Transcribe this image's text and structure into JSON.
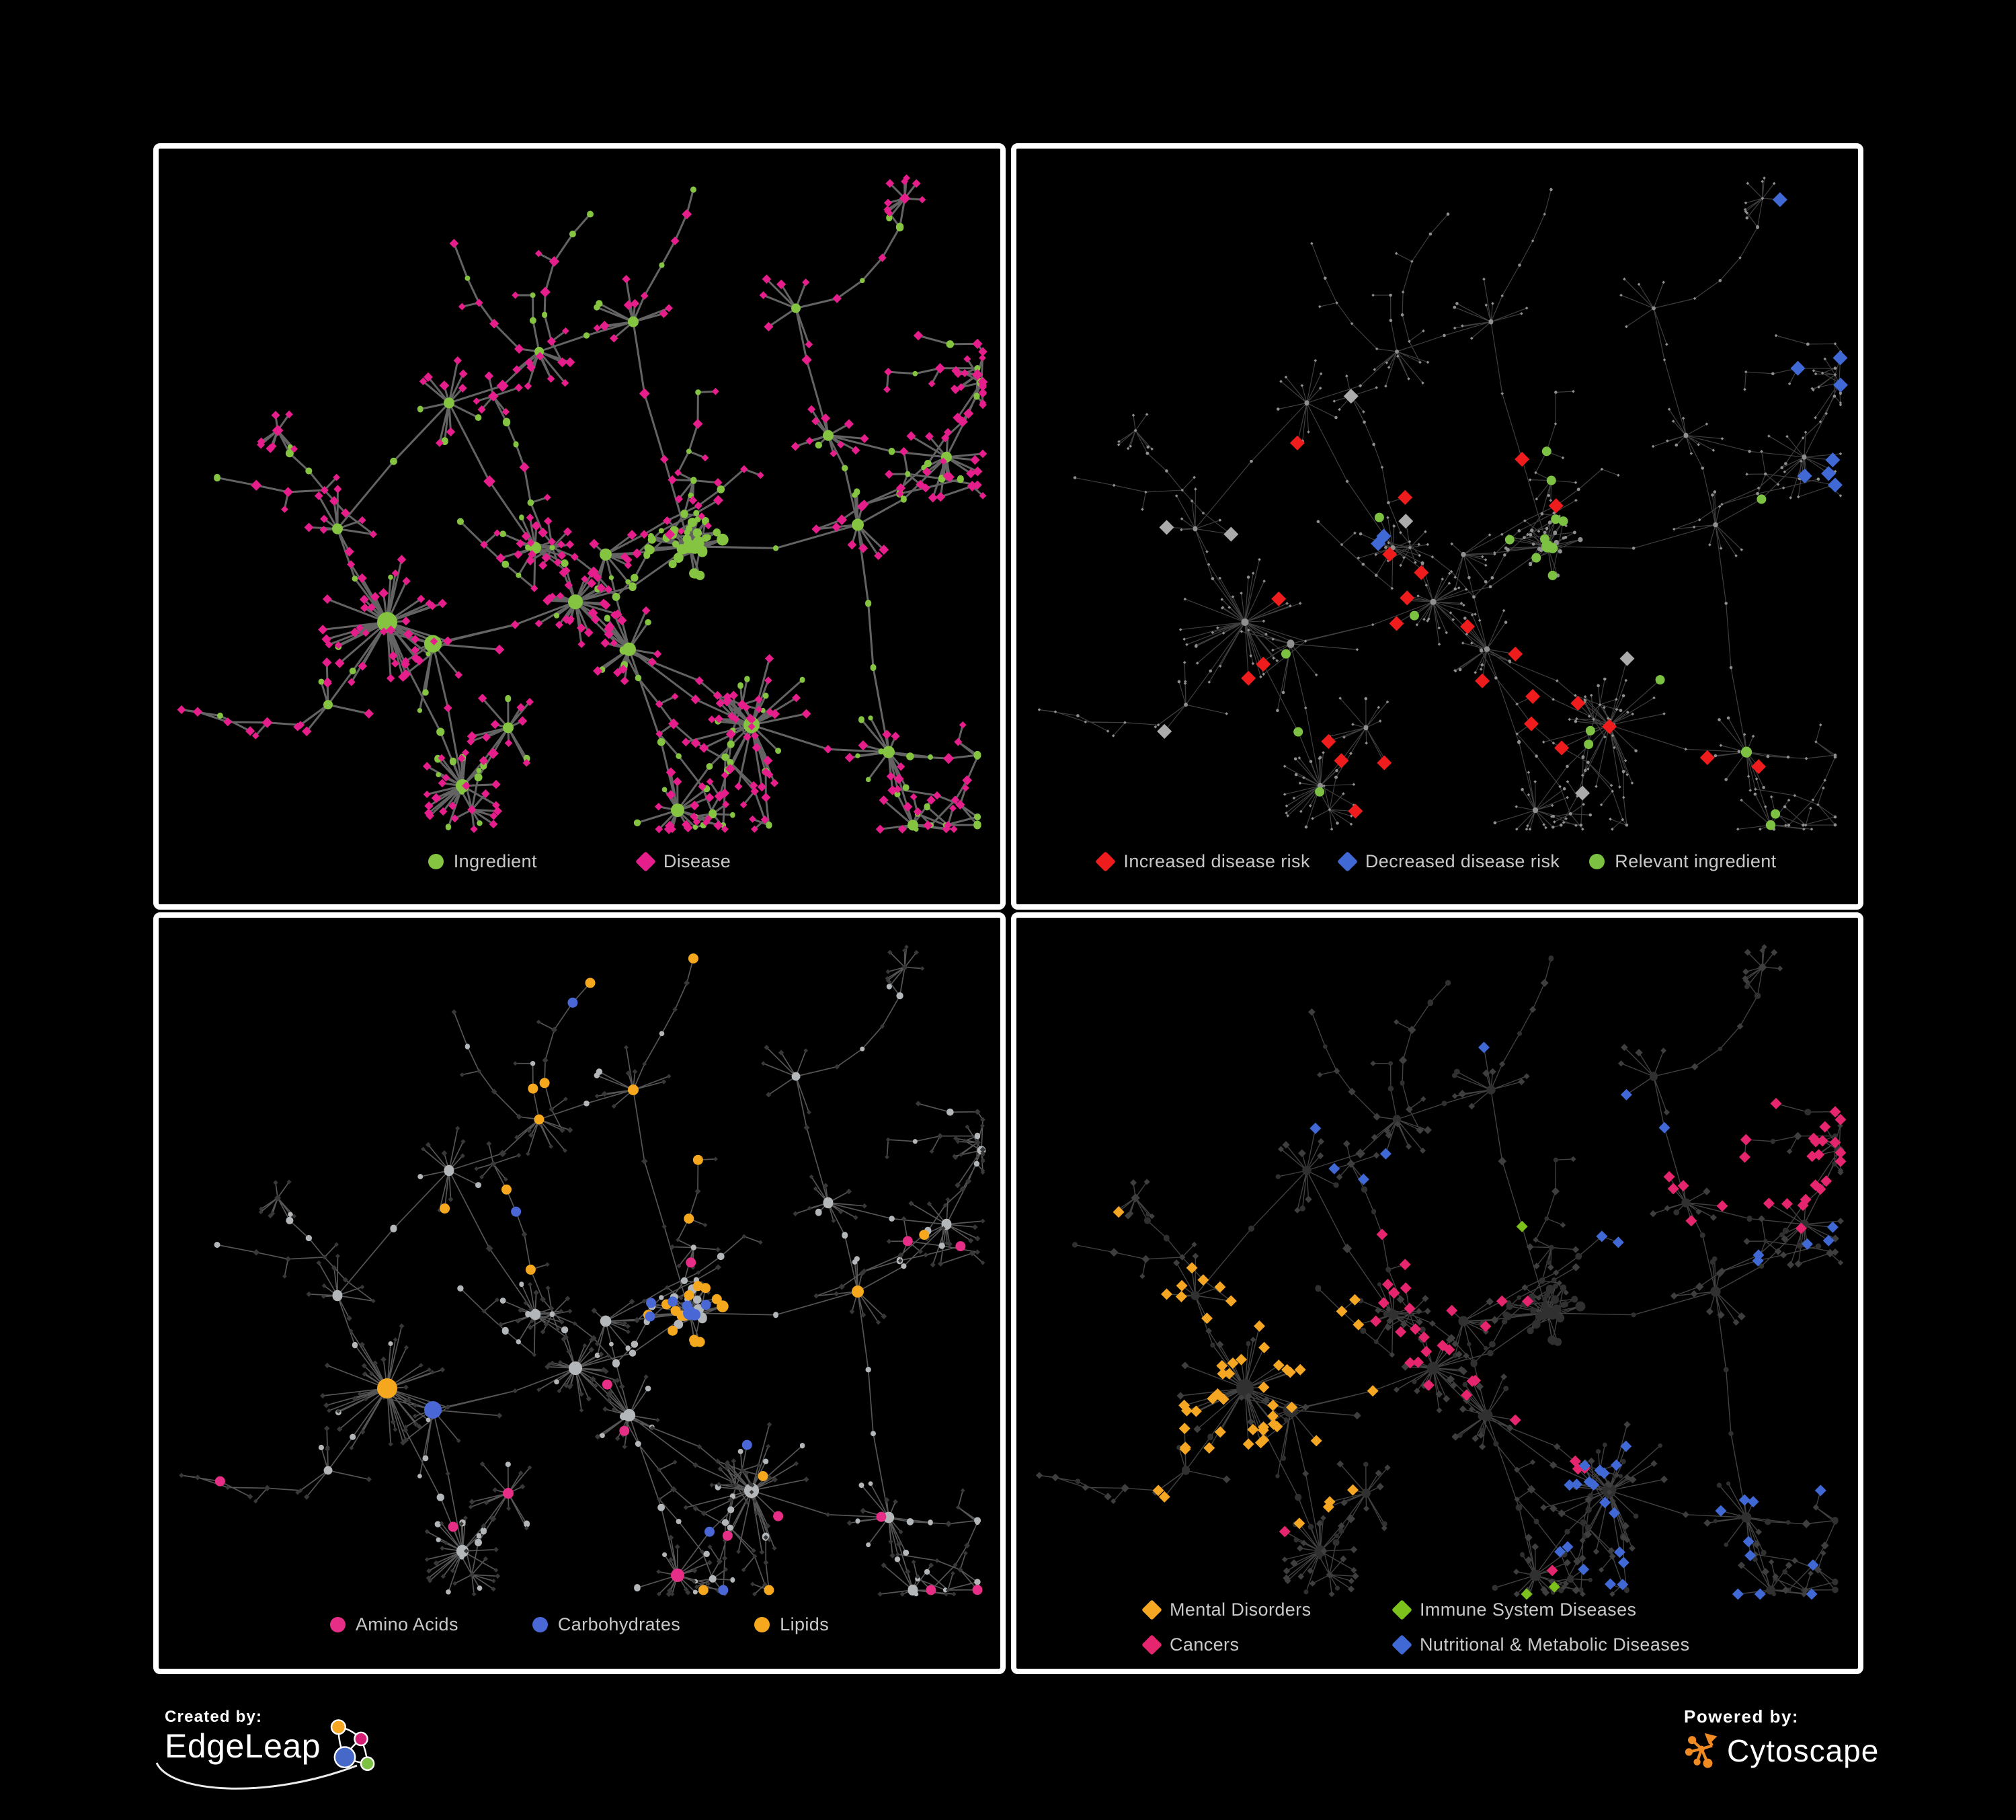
{
  "background": "#000000",
  "panel_border_color": "#FFFFFF",
  "panels": [
    {
      "name": "ingredient-disease-network",
      "legend": [
        {
          "label": "Ingredient",
          "shape": "circle",
          "color": "#84C441"
        },
        {
          "label": "Disease",
          "shape": "diamond",
          "color": "#E61E8C"
        }
      ]
    },
    {
      "name": "disease-risk-network",
      "legend": [
        {
          "label": "Increased disease risk",
          "shape": "diamond",
          "color": "#EE1C1C"
        },
        {
          "label": "Decreased disease risk",
          "shape": "diamond",
          "color": "#4169D6"
        },
        {
          "label": "Relevant ingredient",
          "shape": "circle",
          "color": "#7CC142"
        }
      ]
    },
    {
      "name": "nutrient-class-network",
      "legend": [
        {
          "label": "Amino Acids",
          "shape": "circle",
          "color": "#E62E87"
        },
        {
          "label": "Carbohydrates",
          "shape": "circle",
          "color": "#4A67D6"
        },
        {
          "label": "Lipids",
          "shape": "circle",
          "color": "#F5A81E"
        }
      ]
    },
    {
      "name": "disease-class-network",
      "legend": [
        {
          "label": "Mental Disorders",
          "shape": "diamond",
          "color": "#F5A623"
        },
        {
          "label": "Immune System Diseases",
          "shape": "diamond",
          "color": "#7CC11C"
        },
        {
          "label": "Cancers",
          "shape": "diamond",
          "color": "#E6256F"
        },
        {
          "label": "Nutritional & Metabolic Diseases",
          "shape": "diamond",
          "color": "#4169D6"
        }
      ]
    }
  ],
  "network_styles": [
    {
      "edge": "#6E6E6E",
      "edge_width": 3.0,
      "ingredient": "#84C441",
      "disease": "#E61E8C"
    },
    {
      "edge": "#454545",
      "edge_width": 1.2,
      "base": "#8F8F8F",
      "increased": "#EE1C1C",
      "decreased": "#4169D6",
      "neutral": "#ABABAB",
      "relevant": "#7CC142"
    },
    {
      "edge": "#5E5E5E",
      "edge_width": 1.7,
      "node": "#B4B7BA",
      "disease": "#383838",
      "amino_acids": "#E62E87",
      "carbohydrates": "#4A67D6",
      "lipids": "#F5A81E"
    },
    {
      "edge": "#484848",
      "edge_width": 1.4,
      "base": "#3E3E3E",
      "ingredient_node": "#303030",
      "mental": "#F5A623",
      "immune": "#7CC11C",
      "cancers": "#E6256F",
      "nutritional": "#4169D6"
    }
  ],
  "footer": {
    "created_by": "Created by:",
    "edgeleap": "EdgeLeap",
    "powered_by": "Powered by:",
    "cytoscape": "Cytoscape",
    "cytoscape_orange": "#EF8B22",
    "edgeleap_colors": {
      "orange": "#F5A623",
      "pink": "#D41E74",
      "blue": "#4668C8",
      "green": "#7CC142"
    }
  }
}
